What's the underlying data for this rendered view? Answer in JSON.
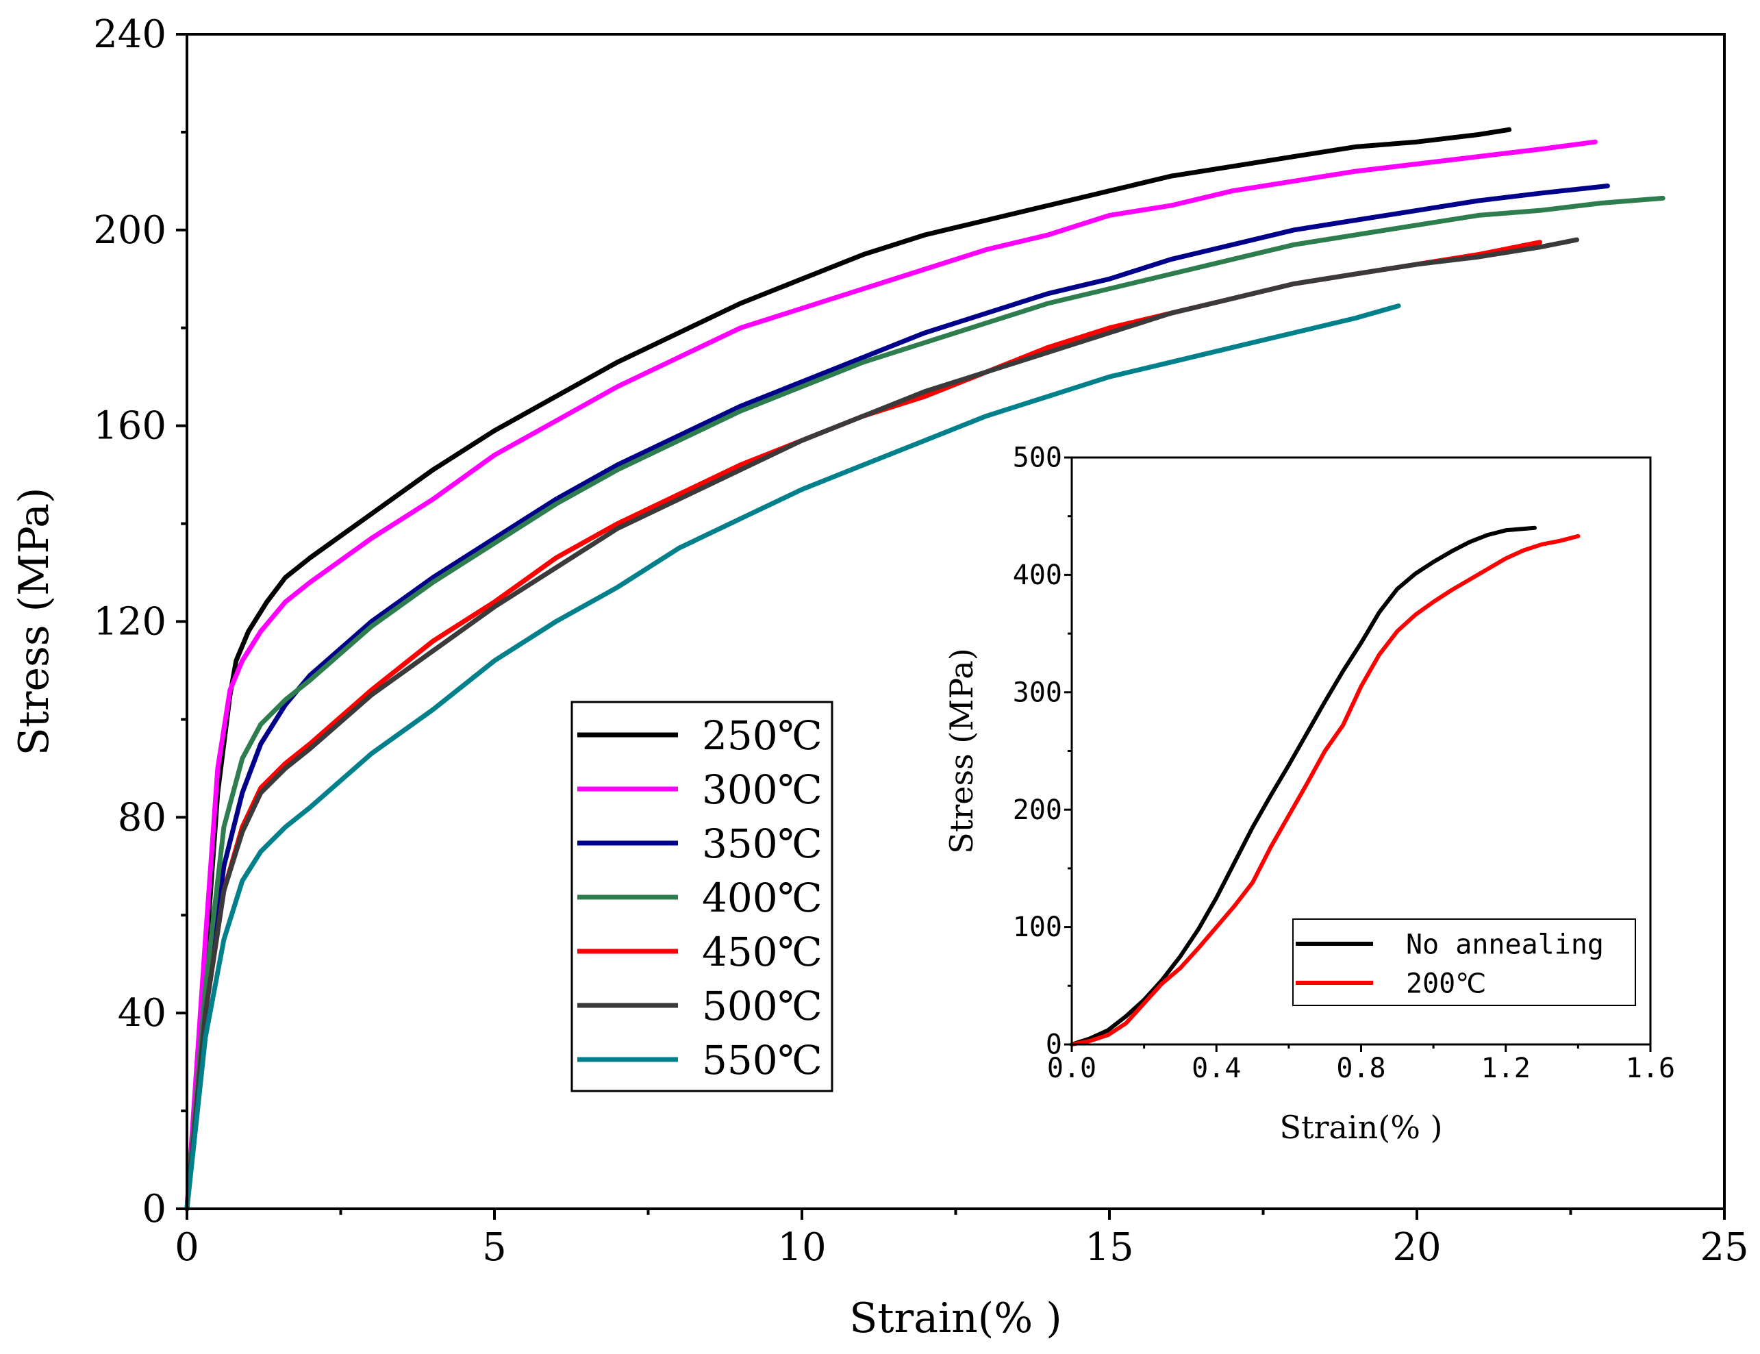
{
  "chart_data": [
    {
      "id": "main",
      "type": "line",
      "title": "",
      "xlabel": "Strain(% )",
      "ylabel": "Stress (MPa)",
      "xlim": [
        0,
        25
      ],
      "ylim": [
        0,
        240
      ],
      "xticks": [
        0,
        5,
        10,
        15,
        20,
        25
      ],
      "yticks": [
        0,
        40,
        80,
        120,
        160,
        200,
        240
      ],
      "xtick_labels": [
        "0",
        "5",
        "10",
        "15",
        "20",
        "25"
      ],
      "ytick_labels": [
        "0",
        "40",
        "80",
        "120",
        "160",
        "200",
        "240"
      ],
      "grid": false,
      "legend_position": "center",
      "series": [
        {
          "name": "250℃",
          "color": "#000000",
          "points": [
            [
              0,
              0
            ],
            [
              0.3,
              50
            ],
            [
              0.5,
              85
            ],
            [
              0.7,
              105
            ],
            [
              0.8,
              112
            ],
            [
              1,
              118
            ],
            [
              1.3,
              124
            ],
            [
              1.6,
              129
            ],
            [
              2,
              133
            ],
            [
              3,
              142
            ],
            [
              4,
              151
            ],
            [
              5,
              159
            ],
            [
              6,
              166
            ],
            [
              7,
              173
            ],
            [
              8,
              179
            ],
            [
              9,
              185
            ],
            [
              10,
              190
            ],
            [
              11,
              195
            ],
            [
              12,
              199
            ],
            [
              13,
              202
            ],
            [
              14,
              205
            ],
            [
              15,
              208
            ],
            [
              16,
              211
            ],
            [
              17,
              213
            ],
            [
              18,
              215
            ],
            [
              19,
              217
            ],
            [
              20,
              218
            ],
            [
              21,
              219.5
            ],
            [
              21.5,
              220.5
            ]
          ]
        },
        {
          "name": "300℃",
          "color": "#ff00ff",
          "points": [
            [
              0,
              0
            ],
            [
              0.3,
              55
            ],
            [
              0.5,
              90
            ],
            [
              0.7,
              106
            ],
            [
              0.9,
              112
            ],
            [
              1.2,
              118
            ],
            [
              1.6,
              124
            ],
            [
              2,
              128
            ],
            [
              3,
              137
            ],
            [
              4,
              145
            ],
            [
              5,
              154
            ],
            [
              6,
              161
            ],
            [
              7,
              168
            ],
            [
              8,
              174
            ],
            [
              9,
              180
            ],
            [
              10,
              184
            ],
            [
              11,
              188
            ],
            [
              12,
              192
            ],
            [
              13,
              196
            ],
            [
              14,
              199
            ],
            [
              15,
              203
            ],
            [
              16,
              205
            ],
            [
              17,
              208
            ],
            [
              18,
              210
            ],
            [
              19,
              212
            ],
            [
              20,
              213.5
            ],
            [
              21,
              215
            ],
            [
              22,
              216.5
            ],
            [
              22.9,
              218
            ]
          ]
        },
        {
          "name": "350℃",
          "color": "#00008b",
          "points": [
            [
              0,
              0
            ],
            [
              0.3,
              40
            ],
            [
              0.6,
              70
            ],
            [
              0.9,
              85
            ],
            [
              1.2,
              95
            ],
            [
              1.6,
              103
            ],
            [
              2,
              109
            ],
            [
              3,
              120
            ],
            [
              4,
              129
            ],
            [
              5,
              137
            ],
            [
              6,
              145
            ],
            [
              7,
              152
            ],
            [
              8,
              158
            ],
            [
              9,
              164
            ],
            [
              10,
              169
            ],
            [
              11,
              174
            ],
            [
              12,
              179
            ],
            [
              13,
              183
            ],
            [
              14,
              187
            ],
            [
              15,
              190
            ],
            [
              16,
              194
            ],
            [
              17,
              197
            ],
            [
              18,
              200
            ],
            [
              19,
              202
            ],
            [
              20,
              204
            ],
            [
              21,
              206
            ],
            [
              22,
              207.5
            ],
            [
              23.1,
              209
            ]
          ]
        },
        {
          "name": "400℃",
          "color": "#2e7d4f",
          "points": [
            [
              0,
              0
            ],
            [
              0.3,
              45
            ],
            [
              0.6,
              78
            ],
            [
              0.9,
              92
            ],
            [
              1.2,
              99
            ],
            [
              1.6,
              104
            ],
            [
              2,
              108
            ],
            [
              3,
              119
            ],
            [
              4,
              128
            ],
            [
              5,
              136
            ],
            [
              6,
              144
            ],
            [
              7,
              151
            ],
            [
              8,
              157
            ],
            [
              9,
              163
            ],
            [
              10,
              168
            ],
            [
              11,
              173
            ],
            [
              12,
              177
            ],
            [
              13,
              181
            ],
            [
              14,
              185
            ],
            [
              15,
              188
            ],
            [
              16,
              191
            ],
            [
              17,
              194
            ],
            [
              18,
              197
            ],
            [
              19,
              199
            ],
            [
              20,
              201
            ],
            [
              21,
              203
            ],
            [
              22,
              204
            ],
            [
              23,
              205.5
            ],
            [
              24,
              206.5
            ]
          ]
        },
        {
          "name": "450℃",
          "color": "#ff0000",
          "points": [
            [
              0,
              0
            ],
            [
              0.3,
              40
            ],
            [
              0.6,
              65
            ],
            [
              0.9,
              78
            ],
            [
              1.2,
              86
            ],
            [
              1.6,
              91
            ],
            [
              2,
              95
            ],
            [
              3,
              106
            ],
            [
              4,
              116
            ],
            [
              5,
              124
            ],
            [
              6,
              133
            ],
            [
              7,
              140
            ],
            [
              8,
              146
            ],
            [
              9,
              152
            ],
            [
              10,
              157
            ],
            [
              11,
              162
            ],
            [
              12,
              166
            ],
            [
              13,
              171
            ],
            [
              14,
              176
            ],
            [
              15,
              180
            ],
            [
              16,
              183
            ],
            [
              17,
              186
            ],
            [
              18,
              189
            ],
            [
              19,
              191
            ],
            [
              20,
              193
            ],
            [
              21,
              195
            ],
            [
              22,
              197.5
            ]
          ]
        },
        {
          "name": "500℃",
          "color": "#3a3a3a",
          "points": [
            [
              0,
              0
            ],
            [
              0.3,
              40
            ],
            [
              0.6,
              65
            ],
            [
              0.9,
              77
            ],
            [
              1.2,
              85
            ],
            [
              1.6,
              90
            ],
            [
              2,
              94
            ],
            [
              3,
              105
            ],
            [
              4,
              114
            ],
            [
              5,
              123
            ],
            [
              6,
              131
            ],
            [
              7,
              139
            ],
            [
              8,
              145
            ],
            [
              9,
              151
            ],
            [
              10,
              157
            ],
            [
              11,
              162
            ],
            [
              12,
              167
            ],
            [
              13,
              171
            ],
            [
              14,
              175
            ],
            [
              15,
              179
            ],
            [
              16,
              183
            ],
            [
              17,
              186
            ],
            [
              18,
              189
            ],
            [
              19,
              191
            ],
            [
              20,
              193
            ],
            [
              21,
              194.5
            ],
            [
              22,
              196.5
            ],
            [
              22.6,
              198
            ]
          ]
        },
        {
          "name": "550℃",
          "color": "#00808b",
          "points": [
            [
              0,
              0
            ],
            [
              0.3,
              35
            ],
            [
              0.6,
              55
            ],
            [
              0.9,
              67
            ],
            [
              1.2,
              73
            ],
            [
              1.6,
              78
            ],
            [
              2,
              82
            ],
            [
              3,
              93
            ],
            [
              4,
              102
            ],
            [
              5,
              112
            ],
            [
              6,
              120
            ],
            [
              7,
              127
            ],
            [
              8,
              135
            ],
            [
              9,
              141
            ],
            [
              10,
              147
            ],
            [
              11,
              152
            ],
            [
              12,
              157
            ],
            [
              13,
              162
            ],
            [
              14,
              166
            ],
            [
              15,
              170
            ],
            [
              16,
              173
            ],
            [
              17,
              176
            ],
            [
              18,
              179
            ],
            [
              19,
              182
            ],
            [
              19.7,
              184.5
            ]
          ]
        }
      ]
    },
    {
      "id": "inset",
      "type": "line",
      "title": "",
      "xlabel": "Strain(% )",
      "ylabel": "Stress (MPa)",
      "xlim": [
        0,
        1.6
      ],
      "ylim": [
        0,
        500
      ],
      "xticks": [
        0,
        0.4,
        0.8,
        1.2,
        1.6
      ],
      "yticks": [
        0,
        100,
        200,
        300,
        400,
        500
      ],
      "xtick_labels": [
        "0.0",
        "0.4",
        "0.8",
        "1.2",
        "1.6"
      ],
      "ytick_labels": [
        "0",
        "100",
        "200",
        "300",
        "400",
        "500"
      ],
      "grid": false,
      "legend_position": "bottom-right",
      "series": [
        {
          "name": "No annealing",
          "color": "#000000",
          "points": [
            [
              0,
              0
            ],
            [
              0.05,
              5
            ],
            [
              0.1,
              12
            ],
            [
              0.15,
              24
            ],
            [
              0.2,
              38
            ],
            [
              0.25,
              55
            ],
            [
              0.3,
              75
            ],
            [
              0.35,
              98
            ],
            [
              0.4,
              125
            ],
            [
              0.45,
              155
            ],
            [
              0.5,
              185
            ],
            [
              0.55,
              212
            ],
            [
              0.6,
              238
            ],
            [
              0.65,
              265
            ],
            [
              0.7,
              292
            ],
            [
              0.75,
              318
            ],
            [
              0.8,
              342
            ],
            [
              0.85,
              368
            ],
            [
              0.9,
              388
            ],
            [
              0.95,
              401
            ],
            [
              1.0,
              411
            ],
            [
              1.05,
              420
            ],
            [
              1.1,
              428
            ],
            [
              1.15,
              434
            ],
            [
              1.2,
              438
            ],
            [
              1.28,
              440
            ]
          ]
        },
        {
          "name": "200℃",
          "color": "#ff0000",
          "points": [
            [
              0,
              0
            ],
            [
              0.05,
              3
            ],
            [
              0.1,
              8
            ],
            [
              0.15,
              18
            ],
            [
              0.2,
              35
            ],
            [
              0.25,
              52
            ],
            [
              0.3,
              65
            ],
            [
              0.35,
              82
            ],
            [
              0.4,
              100
            ],
            [
              0.45,
              118
            ],
            [
              0.5,
              138
            ],
            [
              0.55,
              168
            ],
            [
              0.6,
              195
            ],
            [
              0.65,
              222
            ],
            [
              0.7,
              250
            ],
            [
              0.75,
              272
            ],
            [
              0.8,
              305
            ],
            [
              0.85,
              332
            ],
            [
              0.9,
              352
            ],
            [
              0.95,
              366
            ],
            [
              1.0,
              377
            ],
            [
              1.05,
              387
            ],
            [
              1.1,
              396
            ],
            [
              1.15,
              405
            ],
            [
              1.2,
              414
            ],
            [
              1.25,
              421
            ],
            [
              1.3,
              426
            ],
            [
              1.35,
              429
            ],
            [
              1.4,
              433
            ]
          ]
        }
      ]
    }
  ]
}
